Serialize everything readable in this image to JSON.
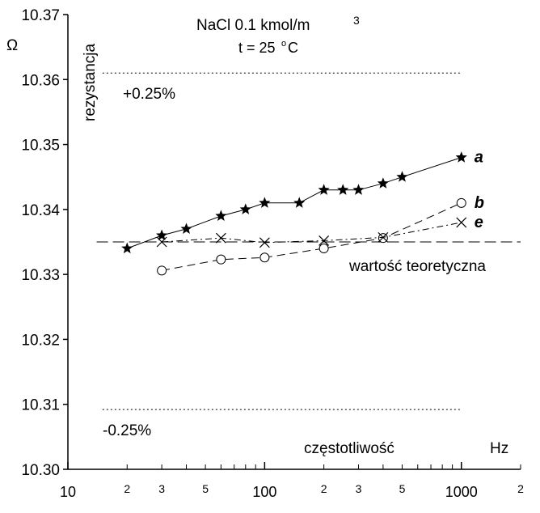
{
  "chart_data": {
    "type": "line",
    "title": "NaCl  0.1 kmol/m",
    "title_superscript": "3",
    "subtitle": "t = 25",
    "subtitle_degree": "o",
    "subtitle_unit": "C",
    "xlabel": "częstotliwość",
    "xunit": "Hz",
    "ylabel": "rezystancja",
    "yunit": "Ω",
    "x_scale": "log",
    "xlim": [
      10,
      2000
    ],
    "ylim": [
      10.3,
      10.37
    ],
    "x_major_ticks": [
      {
        "value": 10,
        "label": "10"
      },
      {
        "value": 100,
        "label": "100"
      },
      {
        "value": 1000,
        "label": "1000"
      }
    ],
    "x_minor_ticks": [
      {
        "value": 20,
        "label": "2"
      },
      {
        "value": 30,
        "label": "3"
      },
      {
        "value": 40,
        "label": ""
      },
      {
        "value": 50,
        "label": "5"
      },
      {
        "value": 60,
        "label": ""
      },
      {
        "value": 70,
        "label": ""
      },
      {
        "value": 80,
        "label": ""
      },
      {
        "value": 90,
        "label": ""
      },
      {
        "value": 200,
        "label": "2"
      },
      {
        "value": 300,
        "label": "3"
      },
      {
        "value": 400,
        "label": ""
      },
      {
        "value": 500,
        "label": "5"
      },
      {
        "value": 600,
        "label": ""
      },
      {
        "value": 700,
        "label": ""
      },
      {
        "value": 800,
        "label": ""
      },
      {
        "value": 900,
        "label": ""
      },
      {
        "value": 2000,
        "label": "2"
      }
    ],
    "y_ticks": [
      {
        "value": 10.3,
        "label": "10.30"
      },
      {
        "value": 10.31,
        "label": "10.31"
      },
      {
        "value": 10.32,
        "label": "10.32"
      },
      {
        "value": 10.33,
        "label": "10.33"
      },
      {
        "value": 10.34,
        "label": "10.34"
      },
      {
        "value": 10.35,
        "label": "10.35"
      },
      {
        "value": 10.36,
        "label": "10.36"
      },
      {
        "value": 10.37,
        "label": "10.37"
      }
    ],
    "reference_lines": [
      {
        "name": "wartość teoretyczna",
        "y": 10.335,
        "x_range": [
          14,
          2000
        ],
        "style": "dashed"
      },
      {
        "name": "+0.25%",
        "y": 10.361,
        "x_range": [
          15,
          1000
        ],
        "style": "dotted"
      },
      {
        "name": "-0.25%",
        "y": 10.3092,
        "x_range": [
          15,
          1000
        ],
        "style": "dotted"
      }
    ],
    "series": [
      {
        "name": "a",
        "marker": "star",
        "line": "solid",
        "x": [
          20,
          30,
          40,
          60,
          80,
          100,
          150,
          200,
          250,
          300,
          400,
          500,
          1000
        ],
        "y": [
          10.334,
          10.336,
          10.337,
          10.339,
          10.34,
          10.341,
          10.341,
          10.343,
          10.343,
          10.343,
          10.344,
          10.345,
          10.348
        ]
      },
      {
        "name": "b",
        "marker": "circle",
        "line": "dashed",
        "x": [
          30,
          60,
          100,
          200,
          400,
          1000
        ],
        "y": [
          10.3306,
          10.3323,
          10.3326,
          10.334,
          10.3356,
          10.341
        ]
      },
      {
        "name": "e",
        "marker": "cross",
        "line": "dashdot",
        "x": [
          30,
          60,
          100,
          200,
          400,
          1000
        ],
        "y": [
          10.335,
          10.3356,
          10.3349,
          10.3352,
          10.3357,
          10.338
        ]
      }
    ]
  }
}
